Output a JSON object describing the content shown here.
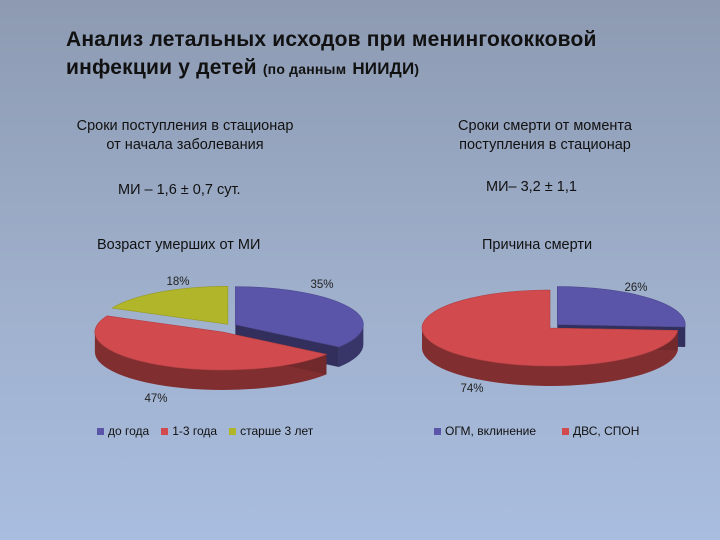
{
  "title": {
    "line1": "Анализ летальных исходов при менингококковой",
    "line2_main": "инфекции у детей",
    "line2_small_a": "(по данным",
    "line2_caps": "НИИДИ",
    "line2_small_b": ")"
  },
  "left_column": {
    "subhead_line1": "Сроки поступления в стационар",
    "subhead_line2": "от начала заболевания",
    "stat": "МИ – 1,6 ± 0,7 сут.",
    "chart_title": "Возраст умерших от МИ"
  },
  "right_column": {
    "subhead_line1": "Сроки смерти от момента",
    "subhead_line2": "поступления в стационар",
    "stat": "МИ– 3,2 ± 1,1",
    "chart_title": "Причина смерти"
  },
  "chart_data": [
    {
      "type": "pie",
      "title": "Возраст умерших от МИ",
      "labels": [
        "до года",
        "1-3 года",
        "старше 3 лет"
      ],
      "values": [
        35,
        47,
        18
      ],
      "value_labels": [
        "35%",
        "47%",
        "18%"
      ],
      "colors": [
        "#5a55a8",
        "#d04a4e",
        "#b0b52a"
      ],
      "legend": "bottom"
    },
    {
      "type": "pie",
      "title": "Причина смерти",
      "labels": [
        "ОГМ, вклинение",
        "ДВС, СПОН"
      ],
      "values": [
        26,
        74
      ],
      "value_labels": [
        "26%",
        "74%"
      ],
      "colors": [
        "#5a55a8",
        "#d04a4e"
      ],
      "legend": "bottom"
    }
  ]
}
